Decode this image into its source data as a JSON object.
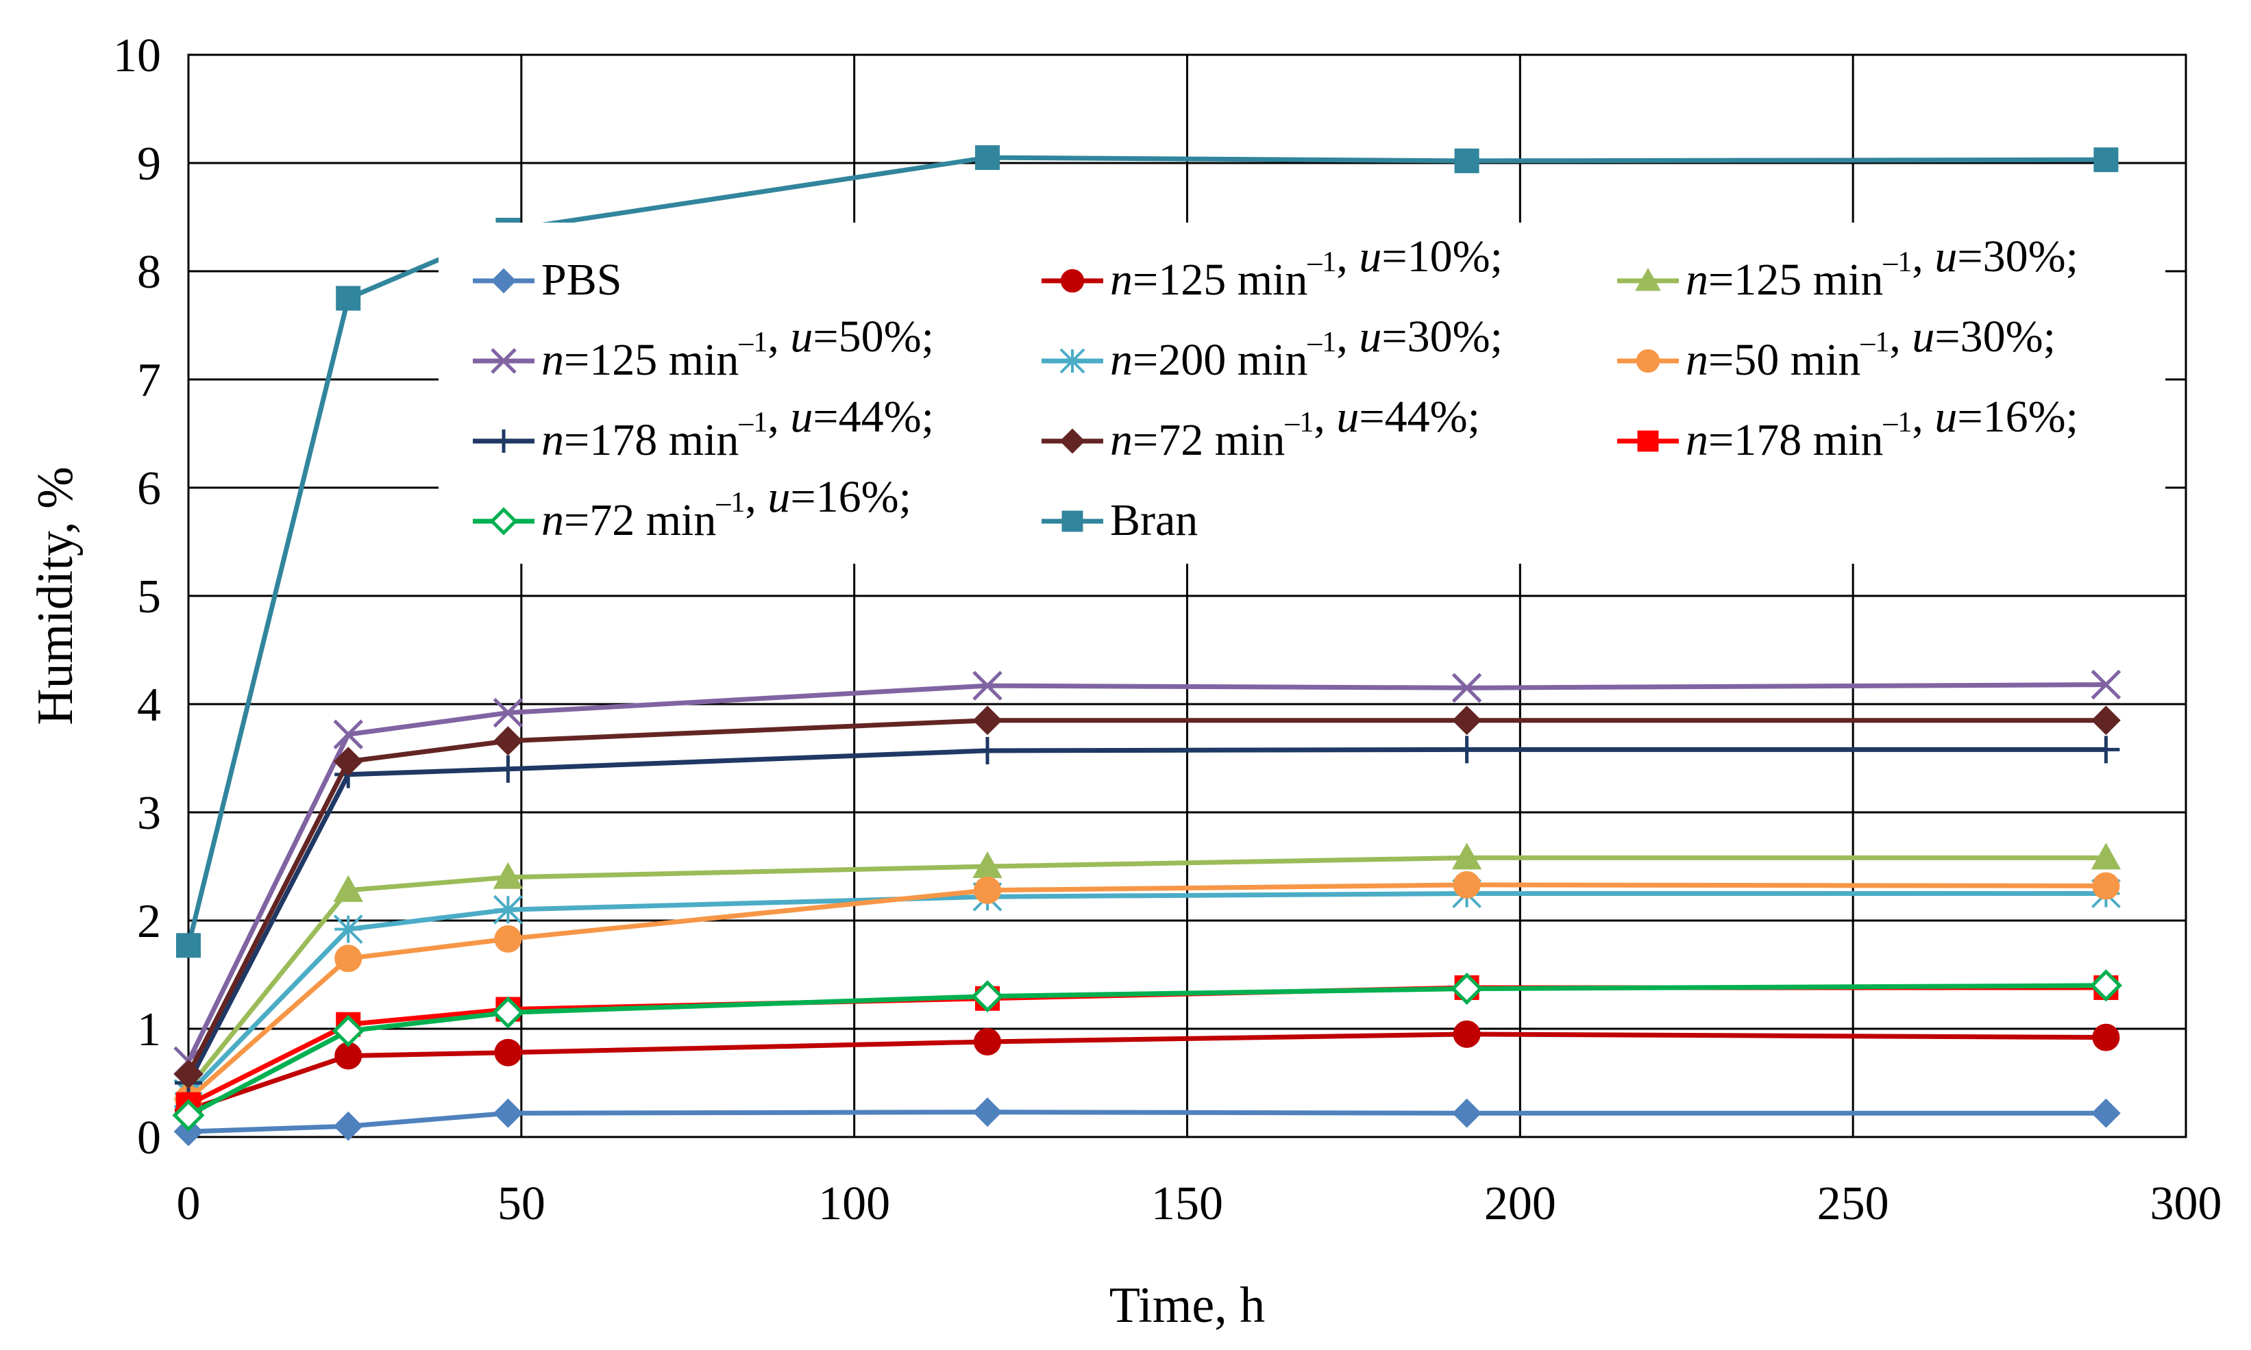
{
  "chart_data": {
    "type": "line",
    "title": "",
    "xlabel": "Time, h",
    "ylabel": "Humidity, %",
    "xlim": [
      0,
      300
    ],
    "ylim": [
      0,
      10
    ],
    "xticks": [
      "0",
      "50",
      "100",
      "150",
      "200",
      "250",
      "300"
    ],
    "yticks": [
      "0",
      "1",
      "2",
      "3",
      "4",
      "5",
      "6",
      "7",
      "8",
      "9",
      "10"
    ],
    "grid": true,
    "legend_placement": "inside-top",
    "x": [
      0,
      24,
      48,
      120,
      192,
      288
    ],
    "series": [
      {
        "name": "PBS",
        "color": "#4F81BD",
        "marker": "diamond",
        "values": [
          0.05,
          0.1,
          0.22,
          0.23,
          0.22,
          0.22
        ]
      },
      {
        "name": "n=125 min-1, u=10%;",
        "color": "#C00000",
        "marker": "circle",
        "values": [
          0.25,
          0.75,
          0.78,
          0.88,
          0.95,
          0.92
        ]
      },
      {
        "name": "n=125 min-1, u=30%;",
        "color": "#9BBB59",
        "marker": "triangle",
        "values": [
          0.45,
          2.28,
          2.4,
          2.5,
          2.58,
          2.58
        ]
      },
      {
        "name": "n=125 min-1, u=50%;",
        "color": "#8064A2",
        "marker": "x",
        "values": [
          0.7,
          3.72,
          3.92,
          4.17,
          4.15,
          4.18
        ]
      },
      {
        "name": "n=200 min-1, u=30%;",
        "color": "#4BACC6",
        "marker": "star",
        "values": [
          0.4,
          1.92,
          2.1,
          2.22,
          2.25,
          2.25
        ]
      },
      {
        "name": "n=50  min-1, u=30%;",
        "color": "#F79646",
        "marker": "circle",
        "values": [
          0.35,
          1.65,
          1.83,
          2.28,
          2.33,
          2.32
        ]
      },
      {
        "name": "n=178  min-1, u=44%;",
        "color": "#1F3864",
        "marker": "plus",
        "values": [
          0.5,
          3.35,
          3.4,
          3.57,
          3.58,
          3.58
        ]
      },
      {
        "name": "n=72  min-1, u=44%;",
        "color": "#632523",
        "marker": "diamond",
        "values": [
          0.58,
          3.47,
          3.66,
          3.85,
          3.85,
          3.85
        ]
      },
      {
        "name": "n=178  min-1, u=16%;",
        "color": "#FF0000",
        "marker": "square",
        "values": [
          0.3,
          1.04,
          1.18,
          1.28,
          1.38,
          1.38
        ]
      },
      {
        "name": "n=72  min-1, u=16%;",
        "color": "#00B050",
        "marker": "diamond-open",
        "values": [
          0.2,
          0.98,
          1.15,
          1.3,
          1.37,
          1.4
        ]
      },
      {
        "name": "Bran",
        "color": "#31859C",
        "marker": "square",
        "values": [
          1.77,
          7.75,
          8.38,
          9.05,
          9.02,
          9.03
        ]
      }
    ],
    "legend": {
      "rows": [
        [
          {
            "series": 0,
            "parts": [
              {
                "t": "PBS"
              }
            ]
          },
          {
            "series": 1,
            "parts": [
              {
                "t": "n",
                "i": true
              },
              {
                "t": "=125 min"
              },
              {
                "t": "–1",
                "sup": true
              },
              {
                "t": ", "
              },
              {
                "t": "u",
                "i": true
              },
              {
                "t": "=10%;"
              }
            ]
          },
          {
            "series": 2,
            "parts": [
              {
                "t": "n",
                "i": true
              },
              {
                "t": "=125 min"
              },
              {
                "t": "–1",
                "sup": true
              },
              {
                "t": ", "
              },
              {
                "t": "u",
                "i": true
              },
              {
                "t": "=30%;"
              }
            ]
          }
        ],
        [
          {
            "series": 3,
            "parts": [
              {
                "t": "n",
                "i": true
              },
              {
                "t": "=125 min"
              },
              {
                "t": "–1",
                "sup": true
              },
              {
                "t": ", "
              },
              {
                "t": "u",
                "i": true
              },
              {
                "t": "=50%;"
              }
            ]
          },
          {
            "series": 4,
            "parts": [
              {
                "t": "n",
                "i": true
              },
              {
                "t": "=200 min"
              },
              {
                "t": "–1",
                "sup": true
              },
              {
                "t": ", "
              },
              {
                "t": "u",
                "i": true
              },
              {
                "t": "=30%;"
              }
            ]
          },
          {
            "series": 5,
            "parts": [
              {
                "t": "n",
                "i": true
              },
              {
                "t": "=50  min"
              },
              {
                "t": "–1",
                "sup": true
              },
              {
                "t": ", "
              },
              {
                "t": "u",
                "i": true
              },
              {
                "t": "=30%;"
              }
            ]
          }
        ],
        [
          {
            "series": 6,
            "parts": [
              {
                "t": "n",
                "i": true
              },
              {
                "t": "=178  min"
              },
              {
                "t": "–1",
                "sup": true
              },
              {
                "t": ", "
              },
              {
                "t": "u",
                "i": true
              },
              {
                "t": "=44%;"
              }
            ]
          },
          {
            "series": 7,
            "parts": [
              {
                "t": "n",
                "i": true
              },
              {
                "t": "=72  min"
              },
              {
                "t": "–1",
                "sup": true
              },
              {
                "t": ", "
              },
              {
                "t": "u",
                "i": true
              },
              {
                "t": "=44%;"
              }
            ]
          },
          {
            "series": 8,
            "parts": [
              {
                "t": "n",
                "i": true
              },
              {
                "t": "=178  min"
              },
              {
                "t": "–1",
                "sup": true
              },
              {
                "t": ", "
              },
              {
                "t": "u",
                "i": true
              },
              {
                "t": "=16%;"
              }
            ]
          }
        ],
        [
          {
            "series": 9,
            "parts": [
              {
                "t": "n",
                "i": true
              },
              {
                "t": "=72  min"
              },
              {
                "t": "–1",
                "sup": true
              },
              {
                "t": ", "
              },
              {
                "t": "u",
                "i": true
              },
              {
                "t": "=16%;"
              }
            ]
          },
          {
            "series": 10,
            "parts": [
              {
                "t": "Bran"
              }
            ]
          }
        ]
      ]
    }
  }
}
